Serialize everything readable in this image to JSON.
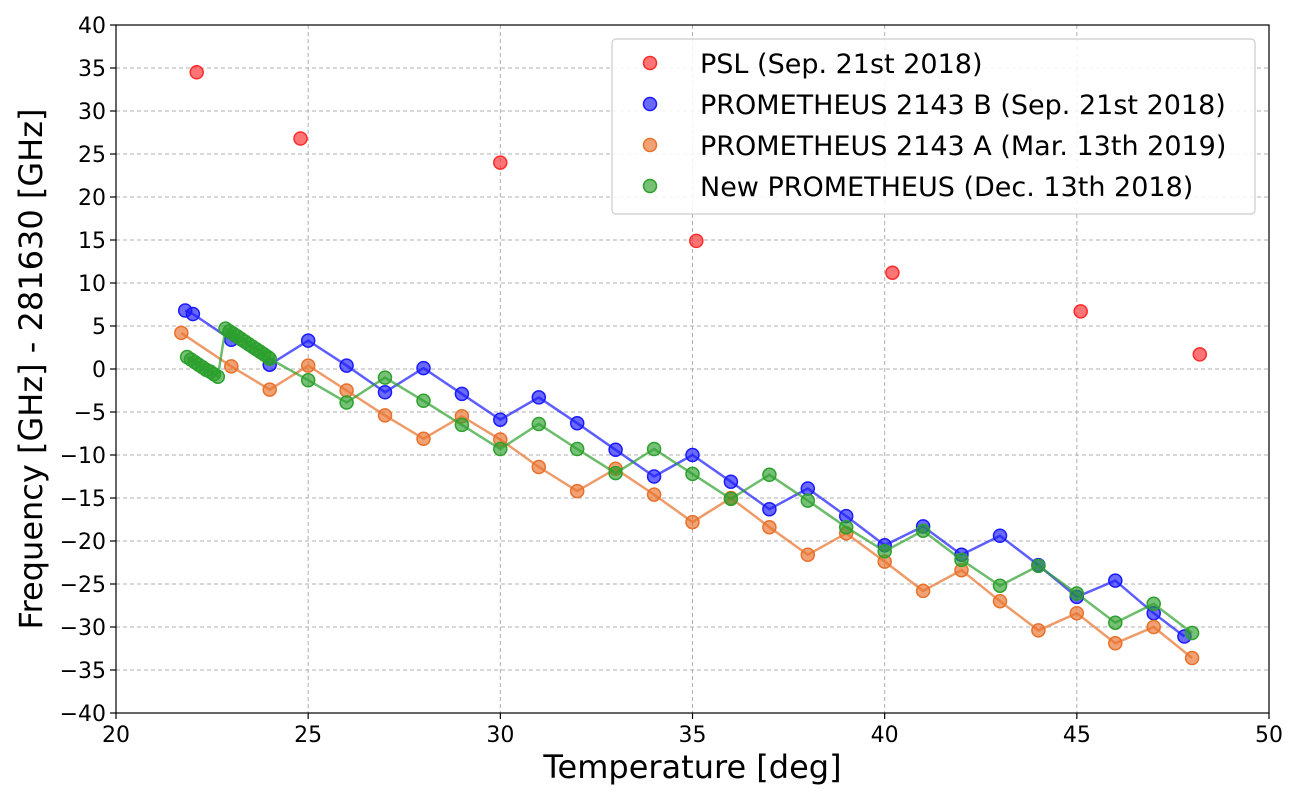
{
  "chart_data": {
    "type": "scatter",
    "title": "",
    "xlabel": "Temperature [deg]",
    "ylabel": "Frequency [GHz] - 281630 [GHz]",
    "xlim": [
      20,
      50
    ],
    "ylim": [
      -40,
      40
    ],
    "xticks": [
      20,
      25,
      30,
      35,
      40,
      45,
      50
    ],
    "yticks": [
      -40,
      -35,
      -30,
      -25,
      -20,
      -15,
      -10,
      -5,
      0,
      5,
      10,
      15,
      20,
      25,
      30,
      35,
      40
    ],
    "grid": true,
    "legend_position": "top-right",
    "series": [
      {
        "name": "PSL (Sep. 21st 2018)",
        "color": "#ff2a2a",
        "connected": false,
        "x": [
          22.1,
          24.8,
          30.0,
          35.1,
          40.2,
          45.1,
          48.2
        ],
        "y": [
          34.5,
          26.8,
          24.0,
          14.9,
          11.2,
          6.7,
          1.7
        ]
      },
      {
        "name": "PROMETHEUS 2143 B (Sep. 21st 2018)",
        "color": "#1a1aff",
        "connected": true,
        "x": [
          21.8,
          22.0,
          23.0,
          24.0,
          25.0,
          26.0,
          27.0,
          28.0,
          29.0,
          30.0,
          31.0,
          32.0,
          33.0,
          34.0,
          35.0,
          36.0,
          37.0,
          38.0,
          39.0,
          40.0,
          41.0,
          42.0,
          43.0,
          44.0,
          45.0,
          46.0,
          47.0,
          47.8
        ],
        "y": [
          6.8,
          6.4,
          3.4,
          0.5,
          3.3,
          0.4,
          -2.7,
          0.1,
          -2.9,
          -5.9,
          -3.3,
          -6.3,
          -9.4,
          -12.5,
          -10.0,
          -13.1,
          -16.3,
          -13.9,
          -17.1,
          -20.5,
          -18.3,
          -21.6,
          -19.4,
          -22.8,
          -26.5,
          -24.6,
          -28.4,
          -31.1
        ]
      },
      {
        "name": "PROMETHEUS 2143 A (Mar. 13th 2019)",
        "color": "#e8702a",
        "connected": true,
        "x": [
          21.7,
          23.0,
          24.0,
          25.0,
          26.0,
          27.0,
          28.0,
          29.0,
          30.0,
          31.0,
          32.0,
          33.0,
          34.0,
          35.0,
          36.0,
          37.0,
          38.0,
          39.0,
          40.0,
          41.0,
          42.0,
          43.0,
          44.0,
          45.0,
          46.0,
          47.0,
          48.0
        ],
        "y": [
          4.2,
          0.3,
          -2.4,
          0.4,
          -2.5,
          -5.4,
          -8.1,
          -5.5,
          -8.2,
          -11.4,
          -14.2,
          -11.6,
          -14.6,
          -17.8,
          -15.0,
          -18.4,
          -21.6,
          -19.1,
          -22.4,
          -25.8,
          -23.4,
          -27.0,
          -30.4,
          -28.4,
          -31.9,
          -30.0,
          -33.6
        ]
      },
      {
        "name": "New PROMETHEUS (Dec. 13th 2018)",
        "color": "#2ca02c",
        "connected": true,
        "x": [
          21.85,
          21.95,
          22.05,
          22.15,
          22.25,
          22.35,
          22.45,
          22.55,
          22.65,
          22.85,
          22.95,
          23.05,
          23.15,
          23.25,
          23.35,
          23.45,
          23.55,
          23.65,
          23.75,
          23.85,
          23.95,
          24.0,
          25.0,
          26.0,
          27.0,
          28.0,
          29.0,
          30.0,
          31.0,
          32.0,
          33.0,
          34.0,
          35.0,
          36.0,
          37.0,
          38.0,
          39.0,
          40.0,
          41.0,
          42.0,
          43.0,
          44.0,
          45.0,
          46.0,
          47.0,
          48.0
        ],
        "y": [
          1.4,
          1.1,
          0.8,
          0.5,
          0.2,
          -0.1,
          -0.3,
          -0.6,
          -0.9,
          4.7,
          4.4,
          4.1,
          3.8,
          3.5,
          3.2,
          2.9,
          2.6,
          2.3,
          2.0,
          1.7,
          1.4,
          1.2,
          -1.3,
          -3.9,
          -1.0,
          -3.7,
          -6.5,
          -9.3,
          -6.4,
          -9.3,
          -12.1,
          -9.3,
          -12.2,
          -15.1,
          -12.3,
          -15.3,
          -18.4,
          -21.2,
          -18.8,
          -22.2,
          -25.2,
          -22.9,
          -26.1,
          -29.5,
          -27.3,
          -30.7
        ]
      }
    ]
  }
}
